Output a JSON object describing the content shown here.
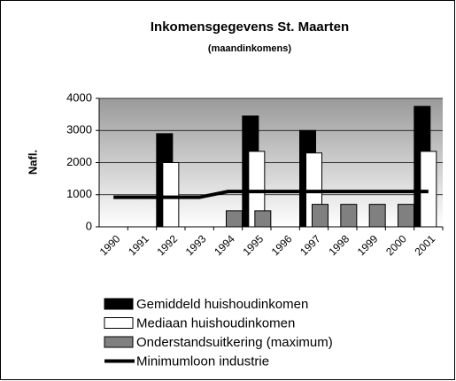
{
  "chart_data": {
    "type": "bar",
    "title": "Inkomensgegevens St. Maarten",
    "subtitle": "(maandinkomens)",
    "y_label": "Nafl.",
    "categories": [
      "1990",
      "1991",
      "1992",
      "1993",
      "1994",
      "1995",
      "1996",
      "1997",
      "1998",
      "1999",
      "2000",
      "2001"
    ],
    "series": [
      {
        "name": "Gemiddeld huishoudinkomen",
        "type": "bar",
        "color": "#000000",
        "values": [
          null,
          null,
          2900,
          null,
          null,
          3450,
          null,
          3000,
          null,
          null,
          null,
          3750
        ]
      },
      {
        "name": "Mediaan huishoudinkomen",
        "type": "bar",
        "color": "#ffffff",
        "values": [
          null,
          null,
          2000,
          null,
          null,
          2350,
          null,
          2300,
          null,
          null,
          null,
          2350
        ]
      },
      {
        "name": "Onderstandsuitkering (maximum)",
        "type": "bar",
        "color": "#808080",
        "values": [
          null,
          null,
          null,
          null,
          500,
          500,
          null,
          700,
          700,
          700,
          700,
          null
        ]
      },
      {
        "name": "Minimumloon industrie",
        "type": "line",
        "color": "#000000",
        "values": [
          920,
          920,
          920,
          920,
          1100,
          1100,
          1100,
          1100,
          1100,
          1100,
          1100,
          1100
        ]
      }
    ],
    "ylim": [
      0,
      4000
    ],
    "yticks": [
      0,
      1000,
      2000,
      3000,
      4000
    ],
    "grid": true
  }
}
